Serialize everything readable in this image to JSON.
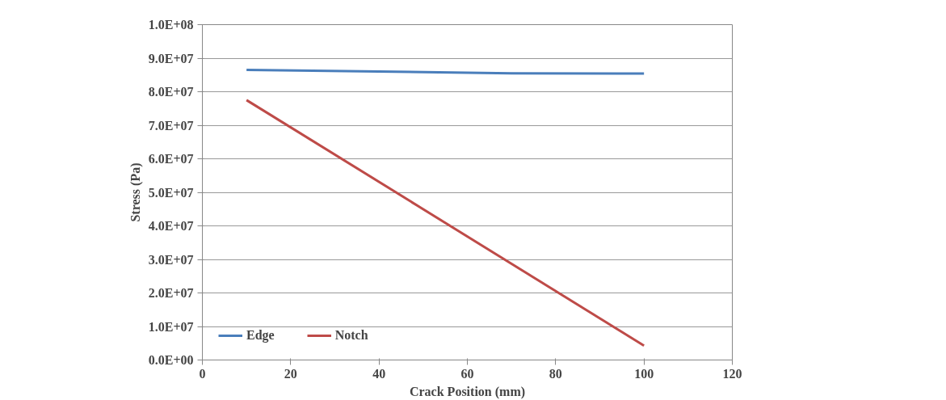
{
  "chart_data": {
    "type": "line",
    "xlabel": "Crack Position (mm)",
    "ylabel": "Stress (Pa)",
    "series": [
      {
        "name": "Edge",
        "color": "#4a7ebb",
        "x": [
          10,
          40,
          70,
          100
        ],
        "values": [
          86500000,
          86000000,
          85500000,
          85400000
        ]
      },
      {
        "name": "Notch",
        "color": "#be4b48",
        "x": [
          10,
          100
        ],
        "values": [
          77500000,
          4300000
        ]
      }
    ],
    "xlim": [
      0,
      120
    ],
    "xticks": [
      0,
      20,
      40,
      60,
      80,
      100,
      120
    ],
    "ylim": [
      0,
      100000000
    ],
    "yticks": [
      {
        "value": 0,
        "label": "0.0E+00"
      },
      {
        "value": 10000000,
        "label": "1.0E+07"
      },
      {
        "value": 20000000,
        "label": "2.0E+07"
      },
      {
        "value": 30000000,
        "label": "3.0E+07"
      },
      {
        "value": 40000000,
        "label": "4.0E+07"
      },
      {
        "value": 50000000,
        "label": "5.0E+07"
      },
      {
        "value": 60000000,
        "label": "6.0E+07"
      },
      {
        "value": 70000000,
        "label": "7.0E+07"
      },
      {
        "value": 80000000,
        "label": "8.0E+07"
      },
      {
        "value": 90000000,
        "label": "9.0E+07"
      },
      {
        "value": 100000000,
        "label": "1.0E+08"
      }
    ],
    "grid": "y",
    "legend": "bottom left",
    "marker": "none",
    "line_style": "solid"
  }
}
